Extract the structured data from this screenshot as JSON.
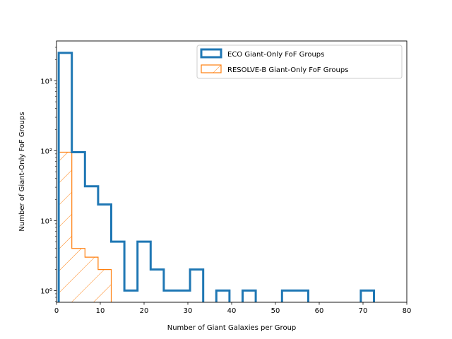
{
  "chart_data": {
    "type": "histogram",
    "xlabel": "Number of Giant Galaxies per Group",
    "ylabel": "Number of Giant-Only FoF Groups",
    "xlim": [
      0,
      80
    ],
    "ylim": [
      0.68,
      3700
    ],
    "yscale": "log",
    "xticks": [
      0,
      10,
      20,
      30,
      40,
      50,
      60,
      70,
      80
    ],
    "xtick_labels": [
      "0",
      "10",
      "20",
      "30",
      "40",
      "50",
      "60",
      "70",
      "80"
    ],
    "yticks": [
      1,
      10,
      100,
      1000
    ],
    "ytick_labels": [
      "10⁰",
      "10¹",
      "10²",
      "10³"
    ],
    "legend_position": "upper right",
    "series": [
      {
        "name": "ECO Giant-Only FoF Groups",
        "color": "#1f77b4",
        "style": "step-outline",
        "bin_edges": [
          0.5,
          3.5,
          6.5,
          9.5,
          12.5,
          15.5,
          18.5,
          21.5,
          24.5,
          27.5,
          30.5,
          33.5,
          36.5,
          39.5,
          42.5,
          45.5,
          48.5,
          51.5,
          54.5,
          57.5,
          60.5,
          63.5,
          66.5,
          69.5,
          72.5
        ],
        "counts": [
          2500,
          95,
          31,
          17,
          5,
          1,
          5,
          2,
          1,
          1,
          2,
          0,
          1,
          0,
          1,
          0,
          0,
          1,
          1,
          0,
          0,
          0,
          0,
          1
        ]
      },
      {
        "name": "RESOLVE-B Giant-Only FoF Groups",
        "color": "#ff7f0e",
        "style": "hatched-outline",
        "bin_edges": [
          0.5,
          3.5,
          6.5,
          9.5,
          12.5
        ],
        "counts": [
          95,
          4,
          3,
          2
        ]
      }
    ]
  }
}
